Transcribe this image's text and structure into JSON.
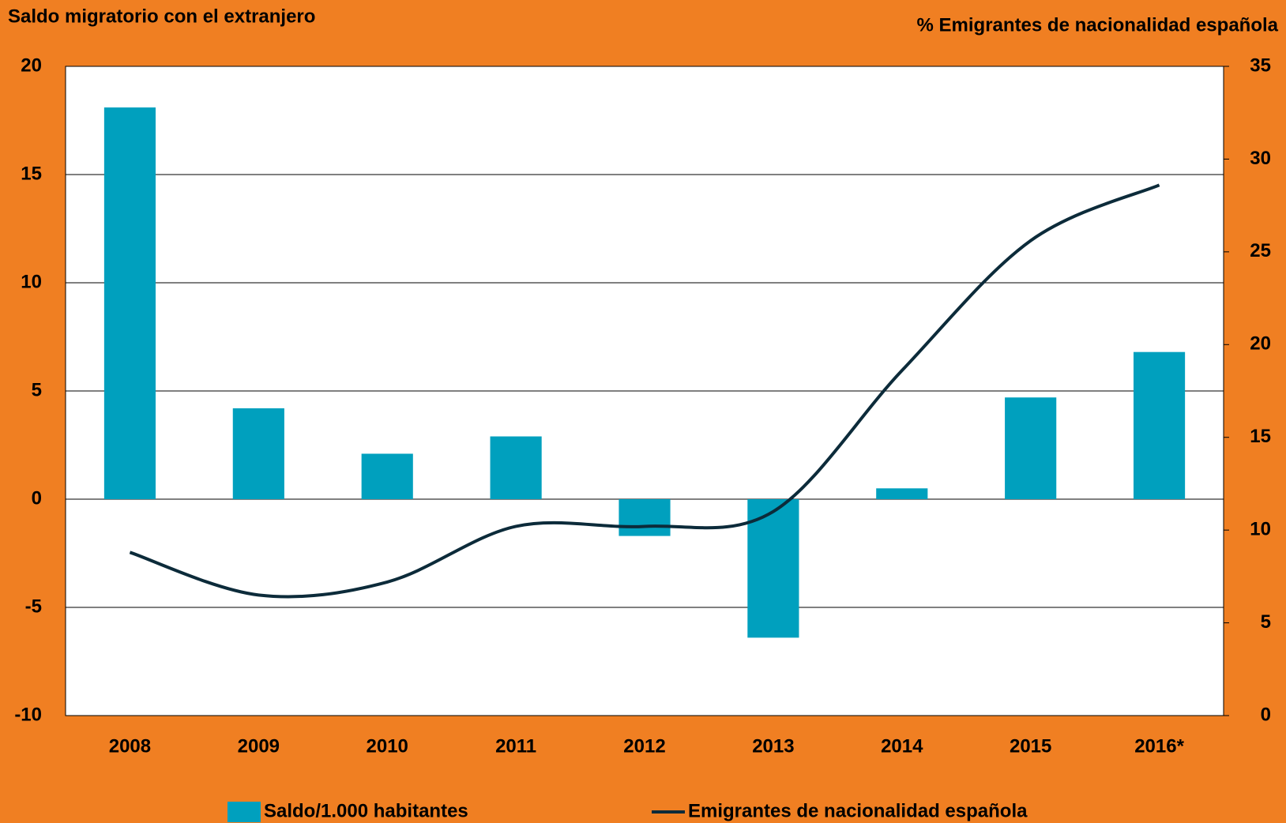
{
  "chart_data": {
    "type": "bar",
    "y_title": "Saldo migratorio con el extranjero",
    "y2_title": "% Emigrantes de nacionalidad española",
    "categories": [
      "2008",
      "2009",
      "2010",
      "2011",
      "2012",
      "2013",
      "2014",
      "2015",
      "2016*"
    ],
    "series": [
      {
        "name": "Saldo/1.000 habitantes",
        "type": "bar",
        "color": "#00a0be",
        "values": [
          18.1,
          4.2,
          2.1,
          2.9,
          -1.7,
          -6.4,
          0.5,
          4.7,
          6.8
        ]
      },
      {
        "name": "Emigrantes de nacionalidad española",
        "type": "line",
        "axis": "y2",
        "color": "#0c2b3a",
        "values": [
          8.8,
          6.5,
          7.2,
          10.2,
          10.2,
          11.0,
          18.6,
          25.6,
          28.6
        ]
      }
    ],
    "ylim": [
      -10,
      20
    ],
    "yticks": [
      -10,
      -5,
      0,
      5,
      10,
      15,
      20
    ],
    "y2lim": [
      0,
      35
    ],
    "y2ticks": [
      0,
      5,
      10,
      15,
      20,
      25,
      30,
      35
    ],
    "grid": true,
    "legend": "bottom",
    "background": "#f07f22"
  }
}
